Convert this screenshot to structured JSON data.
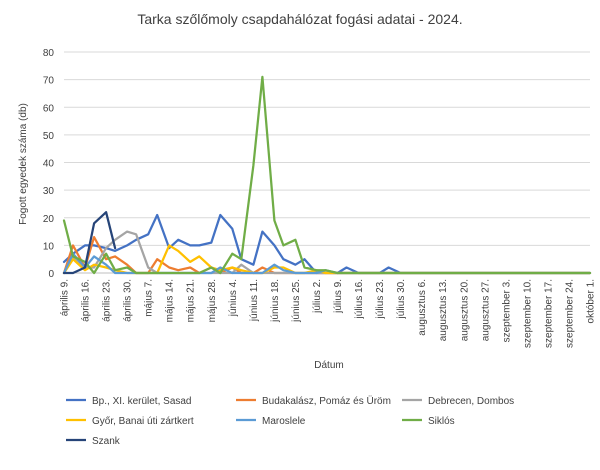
{
  "chart_data": {
    "type": "line",
    "title": "Tarka szőlőmoly csapdahálózat fogási adatai - 2024.",
    "xlabel": "Dátum",
    "ylabel": "Fogott egyedek száma (db)",
    "ylim": [
      0,
      80
    ],
    "yticks": [
      0,
      10,
      20,
      30,
      40,
      50,
      60,
      70,
      80
    ],
    "grid": true,
    "legend_position": "bottom",
    "categories": [
      "április 9.",
      "április 16.",
      "április 23.",
      "április 30.",
      "május 7.",
      "május 14.",
      "május 21.",
      "május 28.",
      "június 4.",
      "június 11.",
      "június 18.",
      "június 25.",
      "július 2.",
      "július 9.",
      "július 16.",
      "július 23.",
      "július 30.",
      "augusztus 6.",
      "augusztus 13.",
      "augusztus 20.",
      "augusztus 27.",
      "szeptember 3.",
      "szeptember 10.",
      "szeptember 17.",
      "szeptember 24.",
      "október 1."
    ],
    "x": [
      "2024-04-09",
      "2024-04-12",
      "2024-04-16",
      "2024-04-19",
      "2024-04-23",
      "2024-04-26",
      "2024-04-30",
      "2024-05-03",
      "2024-05-07",
      "2024-05-10",
      "2024-05-14",
      "2024-05-17",
      "2024-05-21",
      "2024-05-24",
      "2024-05-28",
      "2024-05-31",
      "2024-06-04",
      "2024-06-07",
      "2024-06-11",
      "2024-06-14",
      "2024-06-18",
      "2024-06-21",
      "2024-06-25",
      "2024-06-28",
      "2024-07-02",
      "2024-07-05",
      "2024-07-09",
      "2024-07-12",
      "2024-07-16",
      "2024-07-19",
      "2024-07-23",
      "2024-07-26",
      "2024-07-30",
      "2024-08-02",
      "2024-08-06",
      "2024-08-09",
      "2024-08-13",
      "2024-08-16",
      "2024-08-20",
      "2024-08-23",
      "2024-08-27",
      "2024-08-30",
      "2024-09-03",
      "2024-09-06",
      "2024-09-10",
      "2024-09-13",
      "2024-09-17",
      "2024-09-20",
      "2024-09-24",
      "2024-09-27",
      "2024-10-01"
    ],
    "series": [
      {
        "name": "Bp., XI. kerület, Sasad",
        "color": "#4472c4",
        "values": [
          4,
          7,
          10,
          10,
          9,
          8,
          10,
          12,
          14,
          21,
          9,
          12,
          10,
          10,
          11,
          21,
          16,
          5,
          3,
          15,
          10,
          5,
          3,
          5,
          0,
          0,
          0,
          2,
          0,
          0,
          0,
          2,
          0,
          0,
          0,
          0,
          0,
          0,
          0,
          0,
          0,
          0,
          0,
          0,
          0,
          0,
          0,
          0,
          0,
          0,
          0
        ]
      },
      {
        "name": "Budakalász, Pomáz és Üröm",
        "color": "#ed7d31",
        "values": [
          0,
          10,
          2,
          13,
          5,
          6,
          3,
          0,
          0,
          5,
          2,
          1,
          2,
          0,
          2,
          0,
          2,
          0,
          0,
          2,
          0,
          0,
          0,
          0,
          0,
          0,
          0,
          0,
          0,
          0,
          0,
          0,
          0,
          0,
          0,
          0,
          0,
          0,
          0,
          0,
          0,
          0,
          0,
          0,
          0,
          0,
          0,
          0,
          0,
          0,
          0
        ]
      },
      {
        "name": "Debrecen, Dombos",
        "color": "#a5a5a5",
        "values": [
          0,
          6,
          2,
          2,
          9,
          12,
          15,
          14,
          2,
          0,
          0,
          0,
          0,
          0,
          0,
          0,
          0,
          3,
          0,
          0,
          0,
          0,
          0,
          0,
          0,
          0,
          0,
          0,
          0,
          0,
          0,
          0,
          0,
          0,
          0,
          0,
          0,
          0,
          0,
          0,
          0,
          0,
          0,
          0,
          0,
          0,
          0,
          0,
          0,
          0,
          0
        ]
      },
      {
        "name": "Győr, Banai úti zártkert",
        "color": "#ffc000",
        "values": [
          0,
          5,
          1,
          3,
          2,
          1,
          0,
          0,
          0,
          0,
          10,
          8,
          4,
          6,
          2,
          1,
          2,
          1,
          0,
          0,
          2,
          2,
          0,
          0,
          1,
          0,
          0,
          0,
          0,
          0,
          0,
          0,
          0,
          0,
          0,
          0,
          0,
          0,
          0,
          0,
          0,
          0,
          0,
          0,
          0,
          0,
          0,
          0,
          0,
          0,
          0
        ]
      },
      {
        "name": "Maroslele",
        "color": "#5b9bd5",
        "values": [
          0,
          7,
          2,
          6,
          3,
          0,
          0,
          0,
          0,
          0,
          0,
          0,
          0,
          0,
          0,
          2,
          0,
          0,
          0,
          0,
          3,
          1,
          0,
          0,
          0,
          1,
          0,
          0,
          0,
          0,
          0,
          0,
          0,
          0,
          0,
          0,
          0,
          0,
          0,
          0,
          0,
          0,
          0,
          0,
          0,
          0,
          0,
          0,
          0,
          0,
          0
        ]
      },
      {
        "name": "Siklós",
        "color": "#70ad47",
        "values": [
          19,
          6,
          4,
          0,
          7,
          1,
          2,
          0,
          0,
          0,
          0,
          0,
          0,
          0,
          2,
          0,
          7,
          5,
          39,
          71,
          19,
          10,
          12,
          2,
          1,
          1,
          0,
          0,
          0,
          0,
          0,
          0,
          0,
          0,
          0,
          0,
          0,
          0,
          0,
          0,
          0,
          0,
          0,
          0,
          0,
          0,
          0,
          0,
          0,
          0,
          0
        ]
      },
      {
        "name": "Szank",
        "color": "#264478",
        "values": [
          0,
          0,
          2,
          18,
          22,
          9,
          null,
          null,
          null,
          null,
          null,
          null,
          null,
          null,
          null,
          null,
          null,
          null,
          null,
          null,
          null,
          null,
          null,
          null,
          null,
          null,
          null,
          null,
          null,
          null,
          null,
          null,
          null,
          null,
          null,
          null,
          null,
          null,
          null,
          null,
          null,
          null,
          null,
          null,
          null,
          null,
          null,
          null,
          null,
          null,
          null
        ]
      }
    ]
  }
}
